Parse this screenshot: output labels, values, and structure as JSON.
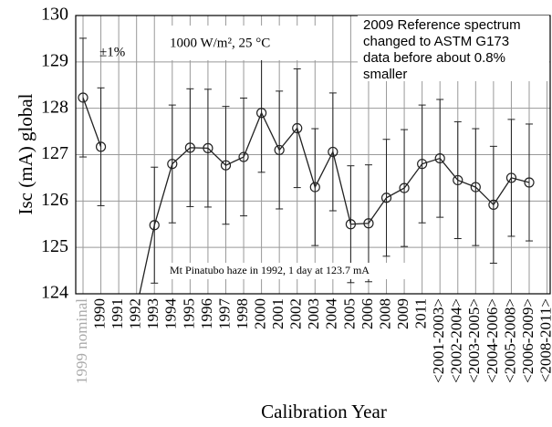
{
  "chart_data": {
    "type": "line",
    "xlabel": "Calibration Year",
    "ylabel": "Isc (mA)  global",
    "categories": [
      "1999 nominal",
      "1990",
      "1991",
      "1992",
      "1993",
      "1994",
      "1995",
      "1996",
      "1997",
      "1998",
      "2000",
      "2001",
      "2002",
      "2003",
      "2004",
      "2005",
      "2006",
      "2008",
      "2009",
      "2011",
      "<2001-2003>",
      "<2002-2004>",
      "<2003-2005>",
      "<2004-2006>",
      "<2005-2008>",
      "<2006-2009>",
      "<2008-2011>"
    ],
    "first_category_color": "#aaaaaa",
    "series": [
      {
        "name": "Isc global",
        "color": "#222222",
        "values": [
          128.23,
          127.17,
          null,
          123.7,
          125.48,
          126.8,
          127.15,
          127.14,
          126.77,
          126.95,
          127.9,
          127.1,
          127.57,
          126.3,
          127.06,
          125.5,
          125.52,
          126.07,
          126.28,
          126.8,
          126.92,
          126.45,
          126.3,
          125.92,
          126.5,
          126.4,
          null
        ],
        "errors": [
          1.28,
          1.27,
          null,
          null,
          1.25,
          1.27,
          1.27,
          1.27,
          1.27,
          1.27,
          1.28,
          1.27,
          1.28,
          1.26,
          1.27,
          1.26,
          1.26,
          1.26,
          1.26,
          1.27,
          1.27,
          1.26,
          1.26,
          1.26,
          1.26,
          1.26,
          null
        ]
      }
    ],
    "ylim": [
      124,
      130
    ],
    "yticks": [
      124,
      125,
      126,
      127,
      128,
      129,
      130
    ],
    "grid": true,
    "annotations": {
      "error_note": "±1%",
      "conditions": "1000 W/m², 25 °C",
      "pinatubo": "Mt Pinatubo haze in 1992, 1 day at 123.7 mA"
    },
    "reference_note": [
      "2009 Reference spectrum",
      "changed to ASTM G173",
      "data before about 0.8%",
      "smaller"
    ]
  }
}
